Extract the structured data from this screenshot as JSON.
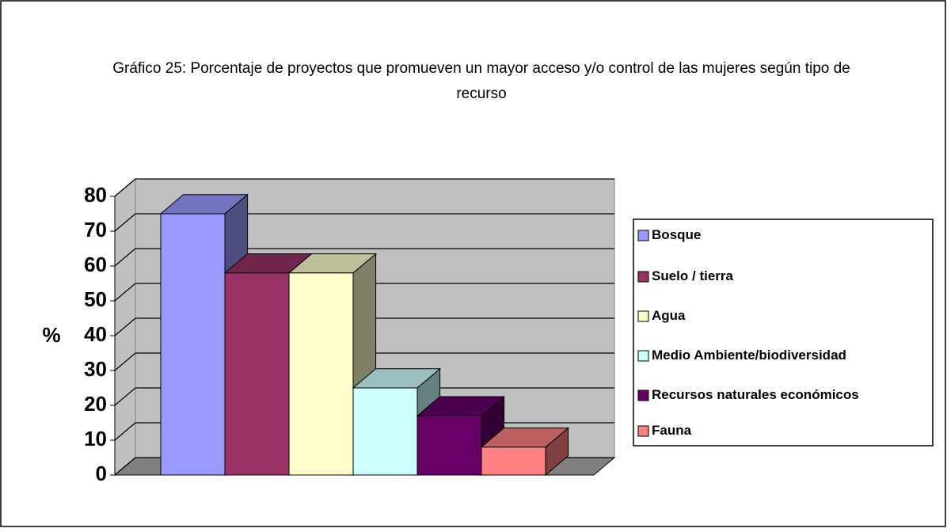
{
  "chart_data": {
    "type": "bar3d",
    "title": "Gráfico 25: Porcentaje de proyectos que promueven un mayor acceso y/o control de las mujeres según tipo de recurso",
    "ylabel": "%",
    "series": [
      {
        "name": "Bosque",
        "color": "#9999ff",
        "values": [
          75
        ]
      },
      {
        "name": "Suelo / tierra",
        "color": "#993366",
        "values": [
          58
        ]
      },
      {
        "name": "Agua",
        "color": "#ffffcc",
        "values": [
          58
        ]
      },
      {
        "name": "Medio Ambiente/biodiversidad",
        "color": "#ccffff",
        "values": [
          25
        ]
      },
      {
        "name": "Recursos naturales económicos",
        "color": "#660066",
        "values": [
          17
        ]
      },
      {
        "name": "Fauna",
        "color": "#ff8080",
        "values": [
          8
        ]
      }
    ],
    "ylim": [
      0,
      80
    ],
    "yticks": [
      0,
      10,
      20,
      30,
      40,
      50,
      60,
      70,
      80
    ],
    "grid": true,
    "legend": "right"
  }
}
